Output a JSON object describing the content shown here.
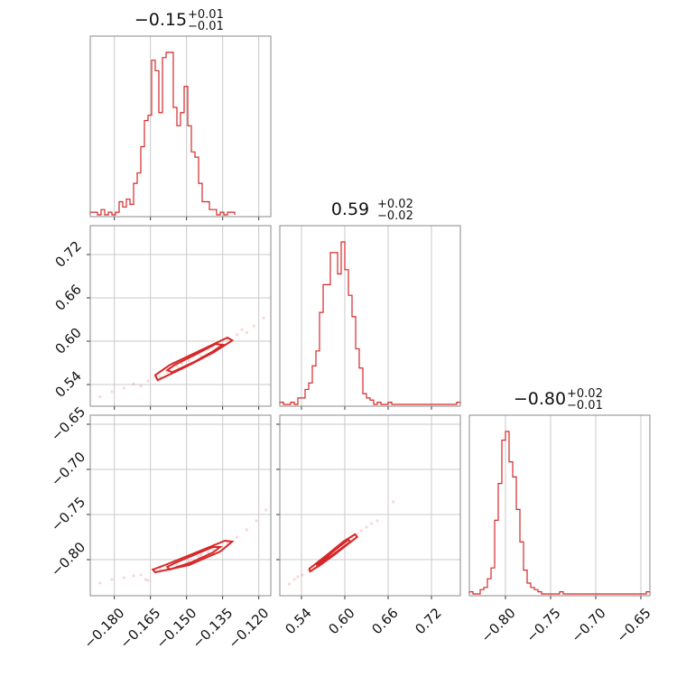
{
  "chart_data": {
    "type": "corner",
    "color": "#d62728",
    "parameters": [
      {
        "id": "p0",
        "range": [
          -0.19,
          -0.115
        ],
        "ticks": [
          -0.18,
          -0.165,
          -0.15,
          -0.135,
          -0.12
        ],
        "tick_labels": [
          "−0.180",
          "−0.165",
          "−0.150",
          "−0.135",
          "−0.120"
        ],
        "title": {
          "value": "−0.15",
          "upper": "+0.01",
          "lower": "−0.01"
        },
        "hist": {
          "edges_start": -0.19,
          "bin_width": 0.0015,
          "counts": [
            1,
            1,
            0,
            2,
            0,
            1,
            0,
            1,
            5,
            3,
            6,
            4,
            12,
            16,
            26,
            36,
            38,
            59,
            55,
            39,
            60,
            62,
            62,
            41,
            34,
            39,
            49,
            34,
            24,
            22,
            12,
            5,
            5,
            2,
            2,
            0,
            1,
            0,
            1,
            1
          ]
        }
      },
      {
        "id": "p1",
        "range": [
          0.51,
          0.76
        ],
        "ticks": [
          0.54,
          0.6,
          0.66,
          0.72
        ],
        "tick_labels": [
          "0.54",
          "0.60",
          "0.66",
          "0.72"
        ],
        "title": {
          "value": "0.59",
          "upper": "+0.02",
          "lower": "−0.02"
        },
        "hist": {
          "edges_start": 0.51,
          "bin_width": 0.005,
          "counts": [
            1,
            0,
            0,
            1,
            0,
            3,
            3,
            7,
            10,
            18,
            25,
            43,
            56,
            56,
            71,
            71,
            61,
            76,
            63,
            51,
            41,
            26,
            17,
            5,
            3,
            2,
            0,
            1,
            0,
            0,
            1,
            0,
            0,
            0,
            0,
            0,
            0,
            0,
            0,
            0,
            0,
            0,
            0,
            0,
            0,
            0,
            0,
            0,
            0,
            1
          ]
        }
      },
      {
        "id": "p2",
        "range": [
          -0.84,
          -0.64
        ],
        "ticks": [
          -0.8,
          -0.75,
          -0.7,
          -0.65
        ],
        "tick_labels": [
          "−0.80",
          "−0.75",
          "−0.70",
          "−0.65"
        ],
        "title": {
          "value": "−0.80",
          "upper": "+0.02",
          "lower": "−0.01"
        },
        "hist": {
          "edges_start": -0.84,
          "bin_width": 0.004,
          "counts": [
            1,
            0,
            0,
            2,
            3,
            7,
            12,
            34,
            51,
            71,
            75,
            61,
            54,
            39,
            24,
            11,
            5,
            3,
            2,
            1,
            0,
            0,
            0,
            0,
            0,
            1,
            0,
            0,
            0,
            0,
            0,
            0,
            0,
            0,
            0,
            0,
            0,
            0,
            0,
            0,
            0,
            0,
            0,
            0,
            0,
            0,
            0,
            0,
            0,
            1
          ]
        }
      }
    ],
    "pairs": [
      {
        "x": "p0",
        "y": "p1",
        "ticks_y": [
          0.54,
          0.6,
          0.66,
          0.72
        ],
        "tick_labels_y": [
          "0.54",
          "0.60",
          "0.66",
          "0.72"
        ],
        "points": [
          [
            -0.186,
            0.523
          ],
          [
            -0.181,
            0.53
          ],
          [
            -0.176,
            0.535
          ],
          [
            -0.172,
            0.541
          ],
          [
            -0.169,
            0.538
          ],
          [
            -0.166,
            0.545
          ],
          [
            -0.163,
            0.55
          ],
          [
            -0.158,
            0.557
          ],
          [
            -0.154,
            0.566
          ],
          [
            -0.149,
            0.573
          ],
          [
            -0.145,
            0.583
          ],
          [
            -0.141,
            0.589
          ],
          [
            -0.137,
            0.597
          ],
          [
            -0.133,
            0.603
          ],
          [
            -0.129,
            0.609
          ],
          [
            -0.125,
            0.612
          ],
          [
            -0.122,
            0.621
          ],
          [
            -0.118,
            0.632
          ],
          [
            -0.161,
            0.551
          ],
          [
            -0.144,
            0.579
          ],
          [
            -0.139,
            0.593
          ],
          [
            -0.152,
            0.569
          ],
          [
            -0.147,
            0.58
          ],
          [
            -0.127,
            0.616
          ]
        ],
        "contours": [
          [
            [
              -0.162,
              0.546
            ],
            [
              -0.15,
              0.565
            ],
            [
              -0.139,
              0.584
            ],
            [
              -0.131,
              0.601
            ],
            [
              -0.133,
              0.605
            ],
            [
              -0.145,
              0.586
            ],
            [
              -0.157,
              0.567
            ],
            [
              -0.163,
              0.553
            ],
            [
              -0.162,
              0.546
            ]
          ],
          [
            [
              -0.156,
              0.557
            ],
            [
              -0.147,
              0.571
            ],
            [
              -0.139,
              0.586
            ],
            [
              -0.135,
              0.595
            ],
            [
              -0.138,
              0.596
            ],
            [
              -0.146,
              0.582
            ],
            [
              -0.155,
              0.567
            ],
            [
              -0.158,
              0.56
            ],
            [
              -0.156,
              0.557
            ]
          ]
        ]
      },
      {
        "x": "p0",
        "y": "p2",
        "ticks_y": [
          -0.8,
          -0.75,
          -0.7,
          -0.65
        ],
        "tick_labels_y": [
          "−0.80",
          "−0.75",
          "−0.70",
          "−0.65"
        ],
        "points": [
          [
            -0.186,
            -0.826
          ],
          [
            -0.181,
            -0.822
          ],
          [
            -0.176,
            -0.82
          ],
          [
            -0.172,
            -0.818
          ],
          [
            -0.169,
            -0.817
          ],
          [
            -0.167,
            -0.822
          ],
          [
            -0.166,
            -0.823
          ],
          [
            -0.163,
            -0.813
          ],
          [
            -0.158,
            -0.812
          ],
          [
            -0.154,
            -0.806
          ],
          [
            -0.149,
            -0.802
          ],
          [
            -0.145,
            -0.797
          ],
          [
            -0.141,
            -0.792
          ],
          [
            -0.137,
            -0.787
          ],
          [
            -0.133,
            -0.781
          ],
          [
            -0.129,
            -0.775
          ],
          [
            -0.125,
            -0.767
          ],
          [
            -0.121,
            -0.757
          ],
          [
            -0.117,
            -0.745
          ],
          [
            -0.161,
            -0.81
          ],
          [
            -0.144,
            -0.795
          ],
          [
            -0.139,
            -0.789
          ]
        ],
        "contours": [
          [
            [
              -0.163,
              -0.814
            ],
            [
              -0.149,
              -0.806
            ],
            [
              -0.136,
              -0.791
            ],
            [
              -0.131,
              -0.78
            ],
            [
              -0.134,
              -0.779
            ],
            [
              -0.146,
              -0.792
            ],
            [
              -0.158,
              -0.805
            ],
            [
              -0.164,
              -0.811
            ],
            [
              -0.163,
              -0.814
            ]
          ],
          [
            [
              -0.157,
              -0.811
            ],
            [
              -0.148,
              -0.803
            ],
            [
              -0.139,
              -0.792
            ],
            [
              -0.136,
              -0.786
            ],
            [
              -0.139,
              -0.786
            ],
            [
              -0.147,
              -0.795
            ],
            [
              -0.155,
              -0.804
            ],
            [
              -0.158,
              -0.808
            ],
            [
              -0.157,
              -0.811
            ]
          ]
        ]
      },
      {
        "x": "p1",
        "y": "p2",
        "points": [
          [
            0.523,
            -0.827
          ],
          [
            0.53,
            -0.822
          ],
          [
            0.535,
            -0.819
          ],
          [
            0.541,
            -0.817
          ],
          [
            0.55,
            -0.812
          ],
          [
            0.557,
            -0.808
          ],
          [
            0.563,
            -0.805
          ],
          [
            0.57,
            -0.8
          ],
          [
            0.577,
            -0.796
          ],
          [
            0.583,
            -0.791
          ],
          [
            0.59,
            -0.788
          ],
          [
            0.597,
            -0.784
          ],
          [
            0.603,
            -0.78
          ],
          [
            0.61,
            -0.776
          ],
          [
            0.617,
            -0.772
          ],
          [
            0.623,
            -0.768
          ],
          [
            0.63,
            -0.764
          ],
          [
            0.637,
            -0.76
          ],
          [
            0.645,
            -0.757
          ],
          [
            0.667,
            -0.736
          ]
        ],
        "contours": [
          [
            [
              0.552,
              -0.813
            ],
            [
              0.566,
              -0.806
            ],
            [
              0.585,
              -0.795
            ],
            [
              0.604,
              -0.783
            ],
            [
              0.617,
              -0.775
            ],
            [
              0.614,
              -0.772
            ],
            [
              0.598,
              -0.78
            ],
            [
              0.578,
              -0.793
            ],
            [
              0.559,
              -0.805
            ],
            [
              0.551,
              -0.81
            ],
            [
              0.552,
              -0.813
            ]
          ],
          [
            [
              0.562,
              -0.807
            ],
            [
              0.579,
              -0.797
            ],
            [
              0.596,
              -0.787
            ],
            [
              0.608,
              -0.78
            ],
            [
              0.605,
              -0.778
            ],
            [
              0.59,
              -0.787
            ],
            [
              0.572,
              -0.799
            ],
            [
              0.561,
              -0.805
            ],
            [
              0.562,
              -0.807
            ]
          ]
        ]
      }
    ]
  }
}
